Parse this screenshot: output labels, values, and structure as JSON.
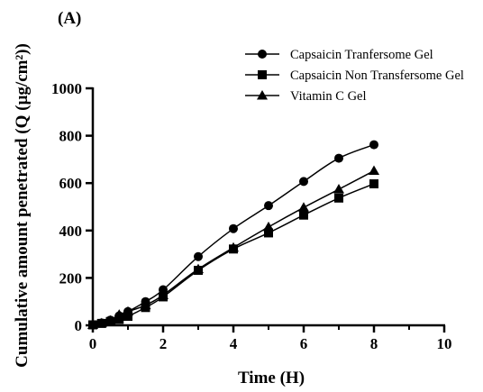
{
  "chart_data": {
    "type": "line",
    "panel_label": "(A)",
    "title": "",
    "xlabel": "Time (H)",
    "ylabel": "Cumulative amount penetrated (Q (µg/cm²))",
    "xlim": [
      0,
      10
    ],
    "ylim": [
      0,
      1000
    ],
    "x_ticks": [
      0,
      2,
      4,
      6,
      8,
      10
    ],
    "y_ticks": [
      0,
      200,
      400,
      600,
      800,
      1000
    ],
    "grid": false,
    "legend_position": "top-right",
    "series": [
      {
        "name": "Capsaicin Tranfersome Gel",
        "marker": "circle",
        "color": "#000000",
        "x": [
          0,
          0.25,
          0.5,
          0.75,
          1,
          1.5,
          2,
          3,
          4,
          5,
          6,
          7,
          8
        ],
        "y": [
          2,
          10,
          22,
          40,
          58,
          100,
          150,
          290,
          408,
          505,
          607,
          705,
          762
        ]
      },
      {
        "name": "Capsaicin Non Transfersome Gel",
        "marker": "square",
        "color": "#000000",
        "x": [
          0,
          0.25,
          0.5,
          0.75,
          1,
          1.5,
          2,
          3,
          4,
          5,
          6,
          7,
          8
        ],
        "y": [
          2,
          8,
          16,
          25,
          38,
          75,
          120,
          232,
          322,
          390,
          465,
          537,
          597
        ]
      },
      {
        "name": "Vitamin C Gel",
        "marker": "triangle",
        "color": "#000000",
        "x": [
          0,
          0.25,
          0.5,
          0.75,
          1,
          1.5,
          2,
          3,
          4,
          5,
          6,
          7,
          8
        ],
        "y": [
          2,
          9,
          20,
          45,
          58,
          85,
          128,
          237,
          328,
          415,
          497,
          574,
          652
        ]
      }
    ]
  }
}
